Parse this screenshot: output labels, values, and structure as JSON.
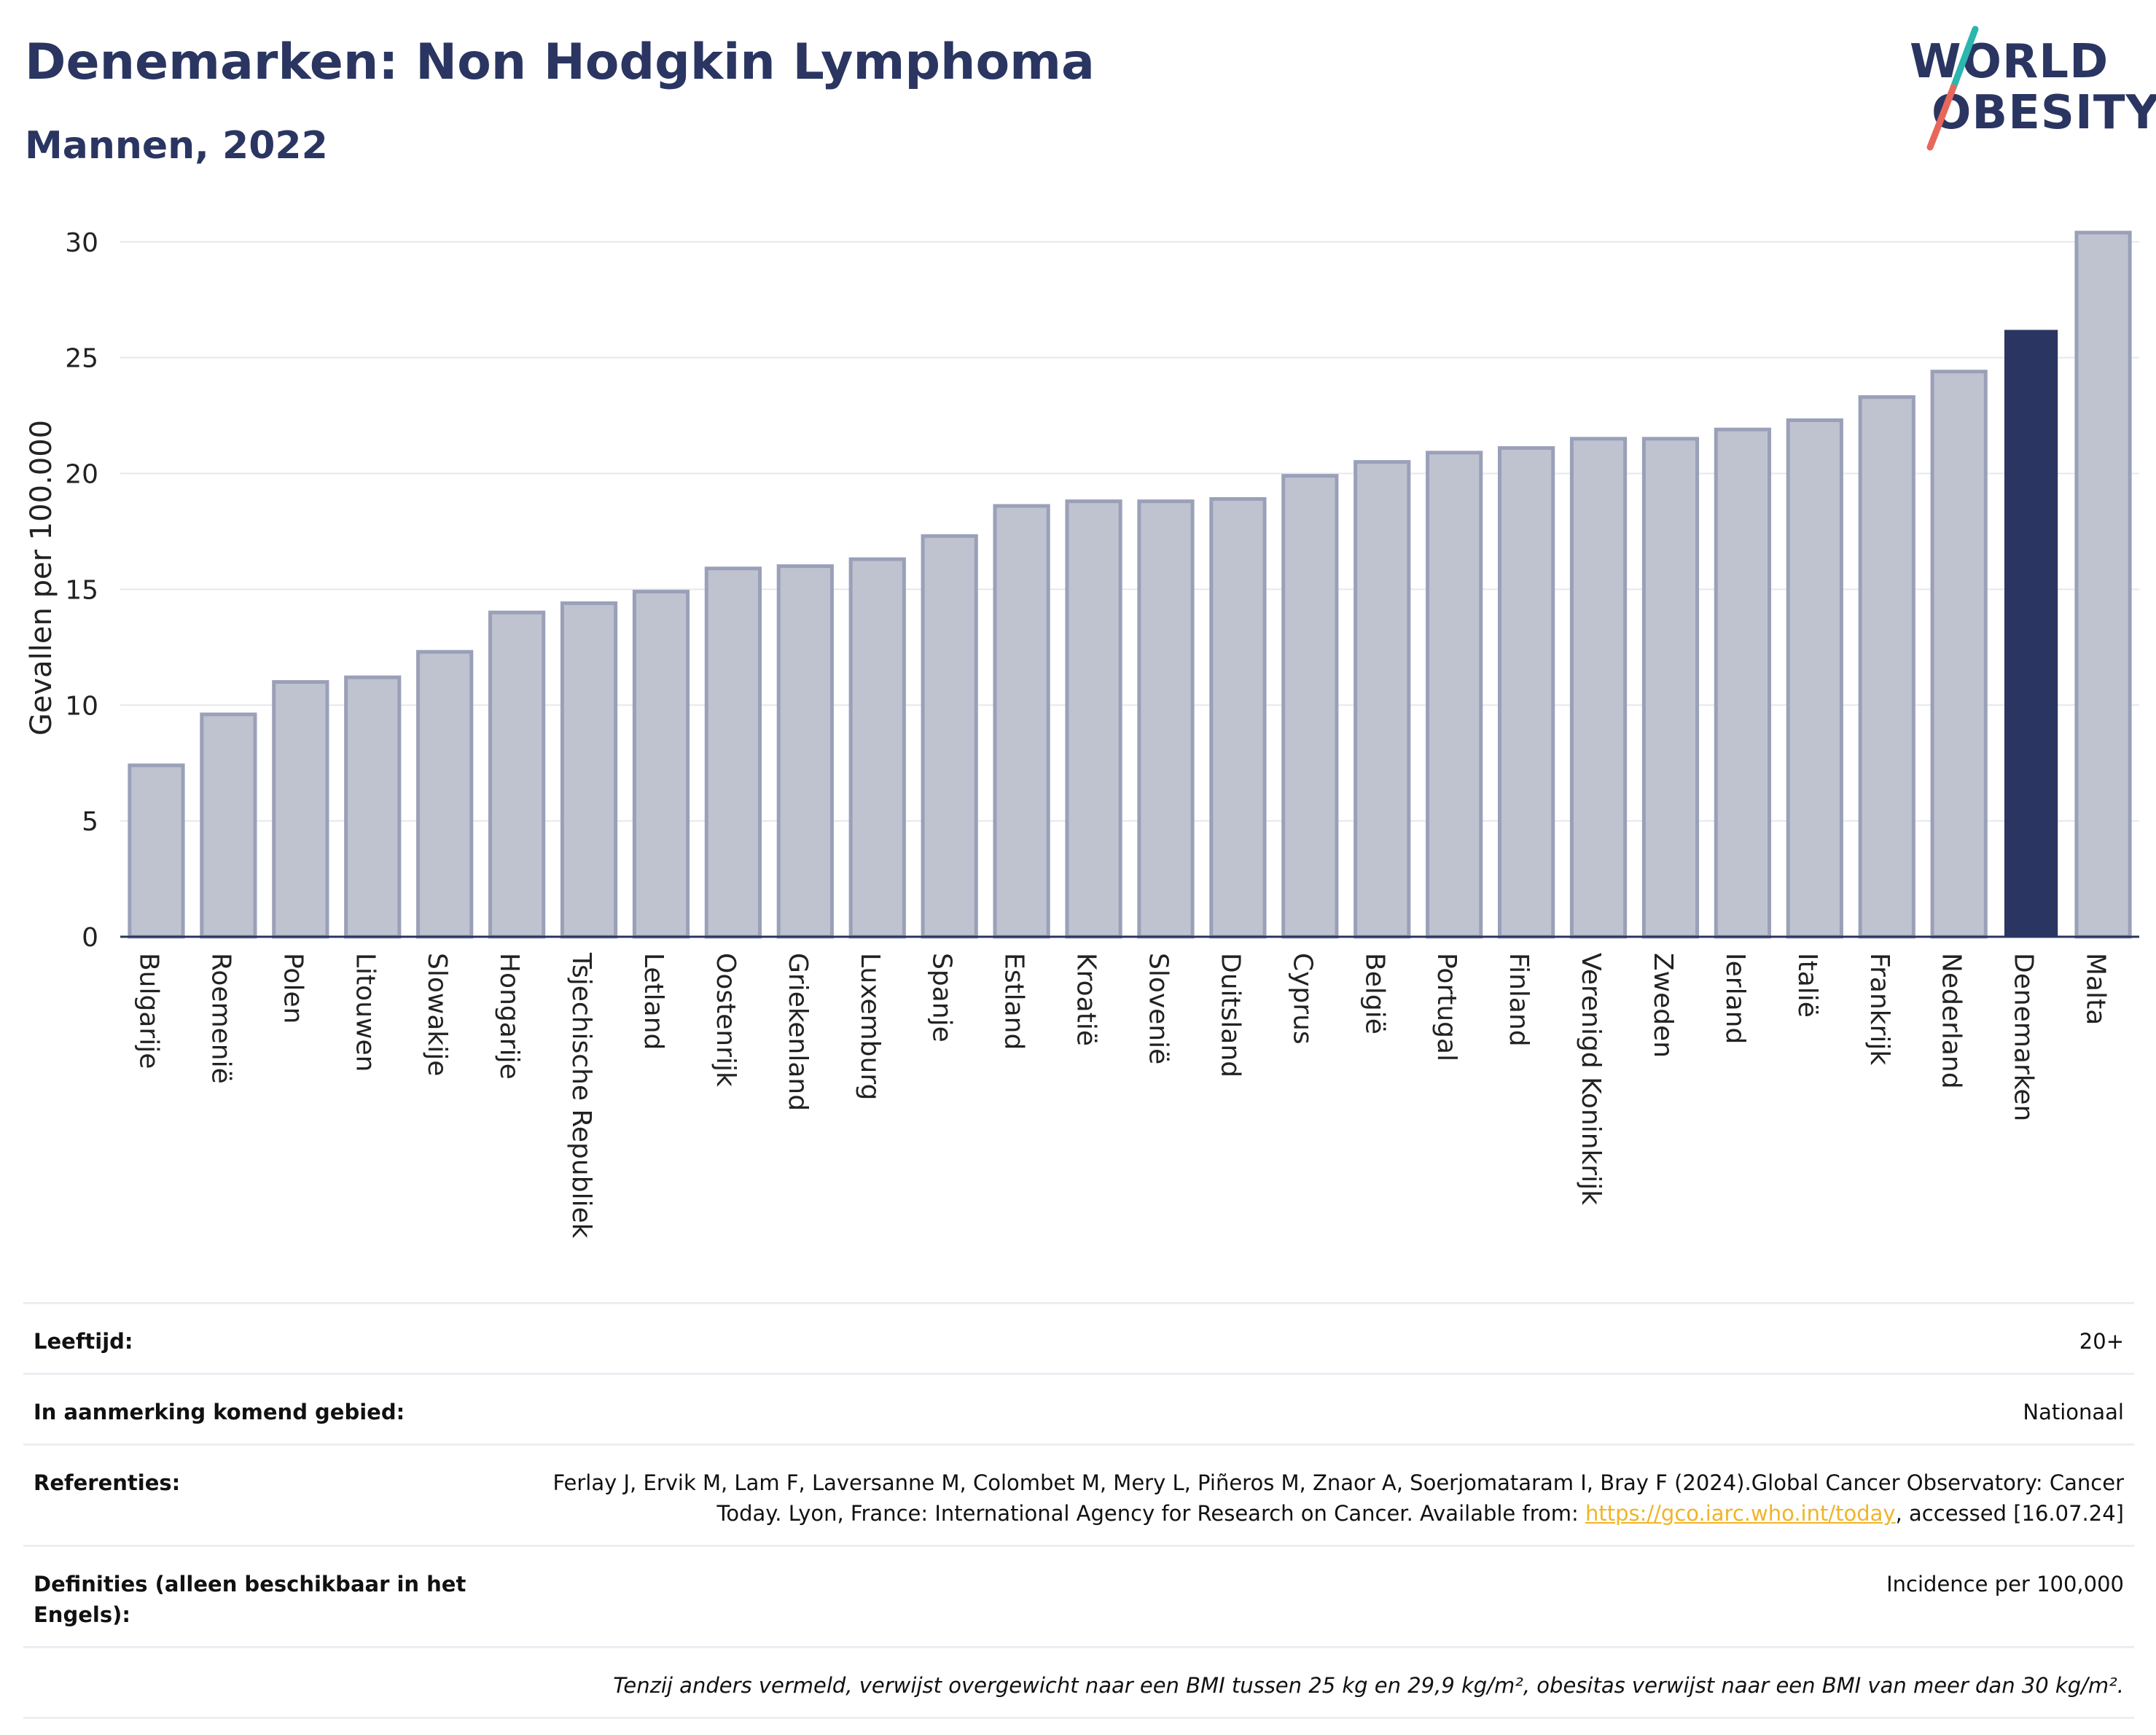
{
  "header": {
    "title": "Denemarken: Non Hodgkin Lymphoma",
    "subtitle": "Mannen, 2022"
  },
  "logo": {
    "line1": "WORLD",
    "line2": "OBESITY",
    "colors": {
      "text": "#2a3561",
      "slash_top": "#2bb6b0",
      "slash_bottom": "#e8675a"
    }
  },
  "chart_data": {
    "type": "bar",
    "title": "Denemarken: Non Hodgkin Lymphoma",
    "subtitle": "Mannen, 2022",
    "ylabel": "Gevallen per 100.000",
    "xlabel": "",
    "ylim": [
      0,
      31
    ],
    "yticks": [
      0,
      5,
      10,
      15,
      20,
      25,
      30
    ],
    "grid": true,
    "categories": [
      "Bulgarije",
      "Roemenië",
      "Polen",
      "Litouwen",
      "Slowakije",
      "Hongarije",
      "Tsjechische Republiek",
      "Letland",
      "Oostenrijk",
      "Griekenland",
      "Luxemburg",
      "Spanje",
      "Estland",
      "Kroatië",
      "Slovenië",
      "Duitsland",
      "Cyprus",
      "België",
      "Portugal",
      "Finland",
      "Verenigd Koninkrijk",
      "Zweden",
      "Ierland",
      "Italië",
      "Frankrijk",
      "Nederland",
      "Denemarken",
      "Malta"
    ],
    "values": [
      7.4,
      9.6,
      11.0,
      11.2,
      12.3,
      14.0,
      14.4,
      14.9,
      15.9,
      16.0,
      16.3,
      17.3,
      18.6,
      18.8,
      18.8,
      18.9,
      19.9,
      20.5,
      20.9,
      21.1,
      21.5,
      21.5,
      21.9,
      22.3,
      23.3,
      24.4,
      26.2,
      30.4
    ],
    "highlight": "Denemarken",
    "colors": {
      "bar": "#bfc3d0",
      "bar_edge": "#9aa0b8",
      "highlight": "#2a3561",
      "axis": "#2a3561",
      "grid": "#e6e8ee"
    }
  },
  "info": {
    "rows": [
      {
        "label": "Leeftijd:",
        "value": "20+"
      },
      {
        "label": "In aanmerking komend gebied:",
        "value": "Nationaal"
      },
      {
        "label": "Referenties:",
        "value_pre": "Ferlay J, Ervik M, Lam F, Laversanne M, Colombet M, Mery L, Piñeros M, Znaor A, Soerjomataram I, Bray F (2024).Global Cancer Observatory: Cancer Today. Lyon, France: International Agency for Research on Cancer. Available from: ",
        "link": "https://gco.iarc.who.int/today",
        "value_post": ", accessed [16.07.24]"
      },
      {
        "label": "Definities (alleen beschikbaar in het Engels):",
        "value": "Incidence per 100,000"
      }
    ],
    "note": "Tenzij anders vermeld, verwijst overgewicht naar een BMI tussen 25 kg en 29,9 kg/m², obesitas verwijst naar een BMI van meer dan 30 kg/m²."
  }
}
